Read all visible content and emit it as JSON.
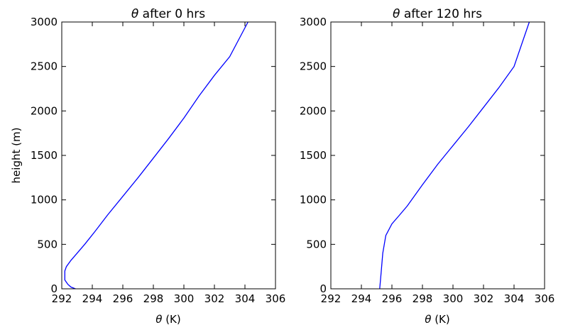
{
  "chart_data": [
    {
      "type": "line",
      "title_symbol": "θ",
      "title": " after 0 hrs",
      "xlabel_symbol": "θ",
      "xlabel": " (K)",
      "ylabel": "height (m)",
      "xlim": [
        292,
        306
      ],
      "ylim": [
        0,
        3000
      ],
      "xticks": [
        "292",
        "294",
        "296",
        "298",
        "300",
        "302",
        "304",
        "306"
      ],
      "yticks": [
        "0",
        "500",
        "1000",
        "1500",
        "2000",
        "2500",
        "3000"
      ],
      "grid": false,
      "series": [
        {
          "color": "#0000ff",
          "x": [
            292.9,
            292.6,
            292.4,
            292.2,
            292.2,
            292.3,
            292.6,
            293.0,
            293.5,
            294.2,
            295.0,
            296.0,
            297.0,
            298.0,
            299.0,
            300.0,
            301.0,
            302.0,
            303.0,
            304.2
          ],
          "y": [
            0,
            20,
            50,
            100,
            200,
            250,
            320,
            400,
            500,
            650,
            830,
            1040,
            1250,
            1470,
            1690,
            1920,
            2170,
            2400,
            2610,
            3000
          ]
        }
      ]
    },
    {
      "type": "line",
      "title_symbol": "θ",
      "title": " after 120 hrs",
      "xlabel_symbol": "θ",
      "xlabel": " (K)",
      "ylabel": "",
      "xlim": [
        292,
        306
      ],
      "ylim": [
        0,
        3000
      ],
      "xticks": [
        "292",
        "294",
        "296",
        "298",
        "300",
        "302",
        "304",
        "306"
      ],
      "yticks": [
        "0",
        "500",
        "1000",
        "1500",
        "2000",
        "2500",
        "3000"
      ],
      "grid": false,
      "series": [
        {
          "color": "#0000ff",
          "x": [
            295.2,
            295.3,
            295.4,
            295.6,
            296.0,
            296.5,
            297.0,
            298.0,
            299.0,
            300.0,
            301.0,
            302.0,
            303.0,
            304.0,
            305.0
          ],
          "y": [
            0,
            200,
            400,
            600,
            730,
            830,
            930,
            1170,
            1400,
            1610,
            1820,
            2040,
            2260,
            2500,
            3000
          ]
        }
      ]
    }
  ]
}
